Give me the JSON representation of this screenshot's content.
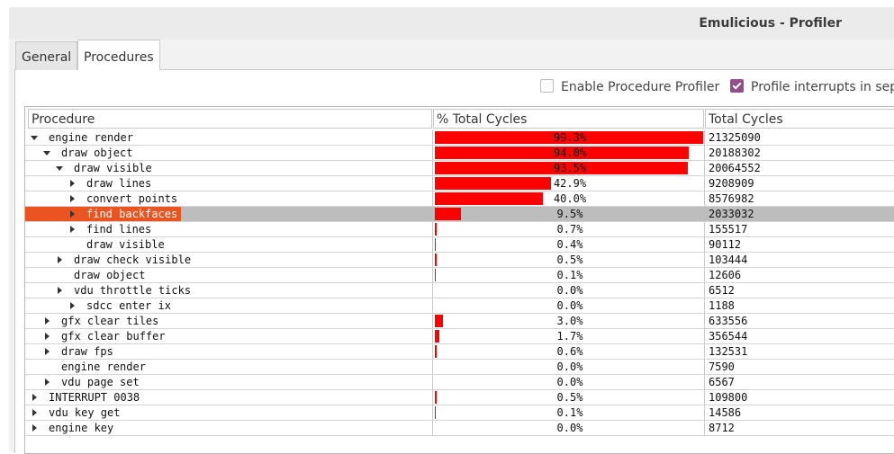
{
  "window": {
    "title": "Emulicious - Profiler"
  },
  "tabs": {
    "items": [
      "General",
      "Procedures"
    ],
    "active": 1
  },
  "options": [
    {
      "label": "Enable Procedure Profiler",
      "checked": false
    },
    {
      "label": "Profile interrupts in sep",
      "checked": true
    }
  ],
  "table": {
    "columns": [
      "Procedure",
      "% Total Cycles",
      "Total Cycles"
    ],
    "selected_row": 5,
    "rows": [
      {
        "name": "engine render",
        "depth": 0,
        "state": "expanded",
        "percent": 99.3,
        "percent_label": "99.3%",
        "cycles": 21325090
      },
      {
        "name": "draw object",
        "depth": 1,
        "state": "expanded",
        "percent": 94.0,
        "percent_label": "94.0%",
        "cycles": 20188302
      },
      {
        "name": "draw visible",
        "depth": 2,
        "state": "expanded",
        "percent": 93.5,
        "percent_label": "93.5%",
        "cycles": 20064552
      },
      {
        "name": "draw lines",
        "depth": 3,
        "state": "collapsed",
        "percent": 42.9,
        "percent_label": "42.9%",
        "cycles": 9208909
      },
      {
        "name": "convert points",
        "depth": 3,
        "state": "collapsed",
        "percent": 40.0,
        "percent_label": "40.0%",
        "cycles": 8576982
      },
      {
        "name": "find backfaces",
        "depth": 3,
        "state": "collapsed",
        "percent": 9.5,
        "percent_label": "9.5%",
        "cycles": 2033032
      },
      {
        "name": "find lines",
        "depth": 3,
        "state": "collapsed",
        "percent": 0.7,
        "percent_label": "0.7%",
        "cycles": 155517
      },
      {
        "name": "draw visible",
        "depth": 3,
        "state": "leaf",
        "percent": 0.4,
        "percent_label": "0.4%",
        "cycles": 90112
      },
      {
        "name": "draw check visible",
        "depth": 2,
        "state": "collapsed",
        "percent": 0.5,
        "percent_label": "0.5%",
        "cycles": 103444
      },
      {
        "name": "draw object",
        "depth": 2,
        "state": "leaf",
        "percent": 0.1,
        "percent_label": "0.1%",
        "cycles": 12606
      },
      {
        "name": "vdu throttle ticks",
        "depth": 2,
        "state": "collapsed",
        "percent": 0.0,
        "percent_label": "0.0%",
        "cycles": 6512
      },
      {
        "name": "sdcc enter ix",
        "depth": 3,
        "state": "collapsed",
        "percent": 0.0,
        "percent_label": "0.0%",
        "cycles": 1188
      },
      {
        "name": "gfx clear tiles",
        "depth": 1,
        "state": "collapsed",
        "percent": 3.0,
        "percent_label": "3.0%",
        "cycles": 633556
      },
      {
        "name": "gfx clear buffer",
        "depth": 1,
        "state": "collapsed",
        "percent": 1.7,
        "percent_label": "1.7%",
        "cycles": 356544
      },
      {
        "name": "draw fps",
        "depth": 1,
        "state": "collapsed",
        "percent": 0.6,
        "percent_label": "0.6%",
        "cycles": 132531
      },
      {
        "name": "engine render",
        "depth": 1,
        "state": "leaf",
        "percent": 0.0,
        "percent_label": "0.0%",
        "cycles": 7590
      },
      {
        "name": "vdu page set",
        "depth": 1,
        "state": "collapsed",
        "percent": 0.0,
        "percent_label": "0.0%",
        "cycles": 6567
      },
      {
        "name": "INTERRUPT 0038",
        "depth": 0,
        "state": "collapsed",
        "percent": 0.5,
        "percent_label": "0.5%",
        "cycles": 109800
      },
      {
        "name": "vdu key get",
        "depth": 0,
        "state": "collapsed",
        "percent": 0.1,
        "percent_label": "0.1%",
        "cycles": 14586
      },
      {
        "name": "engine key",
        "depth": 0,
        "state": "collapsed",
        "percent": 0.0,
        "percent_label": "0.0%",
        "cycles": 8712
      }
    ]
  }
}
